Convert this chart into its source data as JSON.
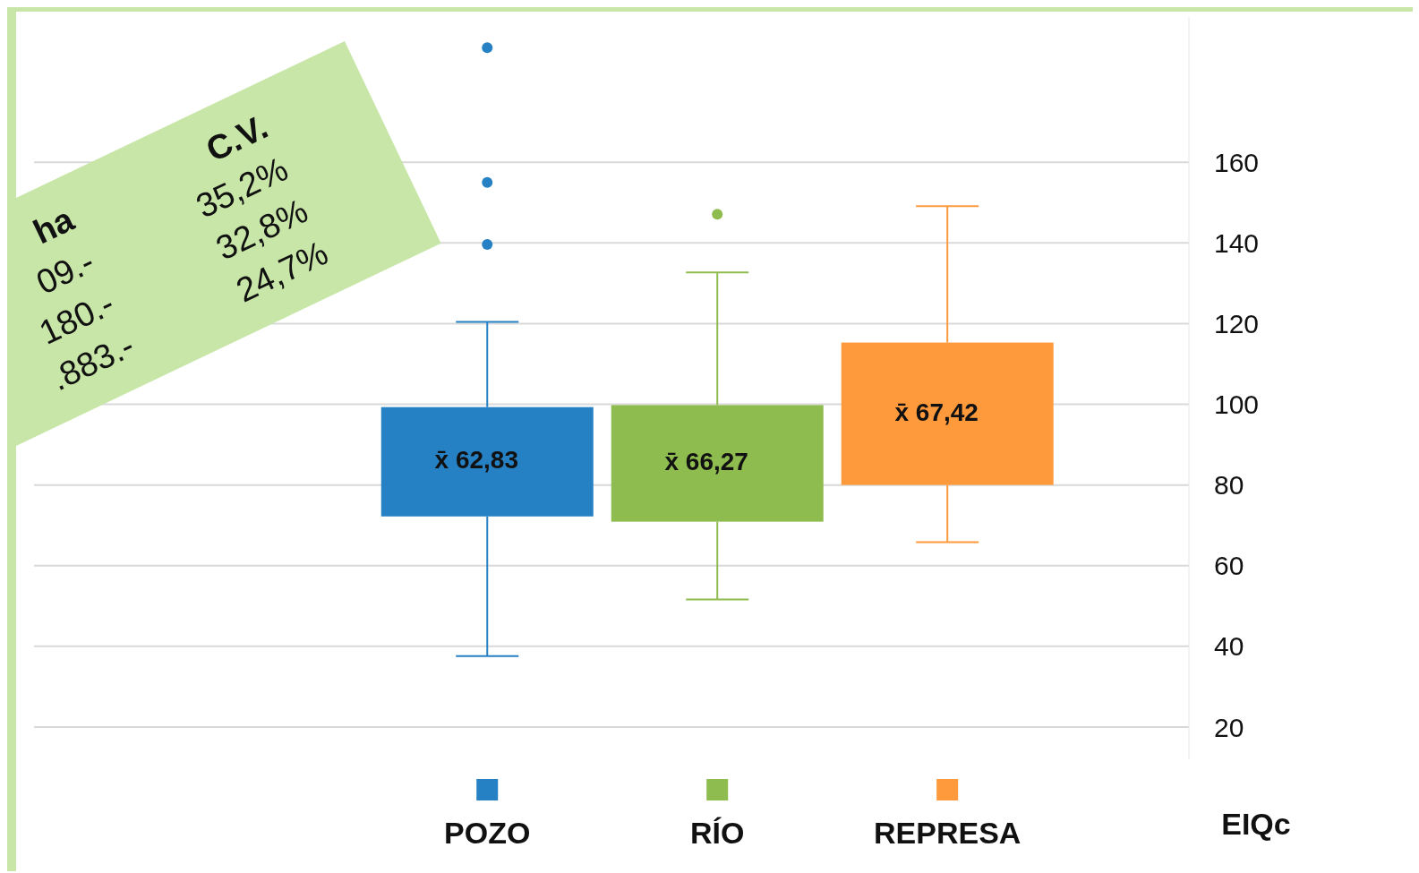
{
  "chart_data": {
    "type": "box",
    "categories": [
      "POZO",
      "RÍO",
      "REPRESA"
    ],
    "colors": [
      "#2681c4",
      "#8fbc4f",
      "#ff9a3c"
    ],
    "boxes": [
      {
        "low": 37.6,
        "q1": 72.2,
        "median": null,
        "q3": 99.3,
        "high": 120.4,
        "outliers": [
          188.4,
          155,
          139.6
        ]
      },
      {
        "low": 51.6,
        "q1": 70.9,
        "median": null,
        "q3": 99.8,
        "high": 132.7,
        "outliers": [
          147.1
        ]
      },
      {
        "low": 65.8,
        "q1": 80,
        "median": null,
        "q3": 115.3,
        "high": 149.1
      }
    ],
    "ylabel": "EIQc",
    "ylim": [
      12,
      196
    ],
    "yticks": [
      20,
      40,
      60,
      80,
      100,
      120,
      140,
      160
    ],
    "grid": "y",
    "annotations": [
      "x̄ 62,83",
      "x̄ 66,27",
      "x̄ 67,42",
      "ha",
      "09.-",
      "180.-",
      ".883.-",
      "C.V.",
      "35,2%",
      "32,8%",
      "24,7%"
    ]
  }
}
